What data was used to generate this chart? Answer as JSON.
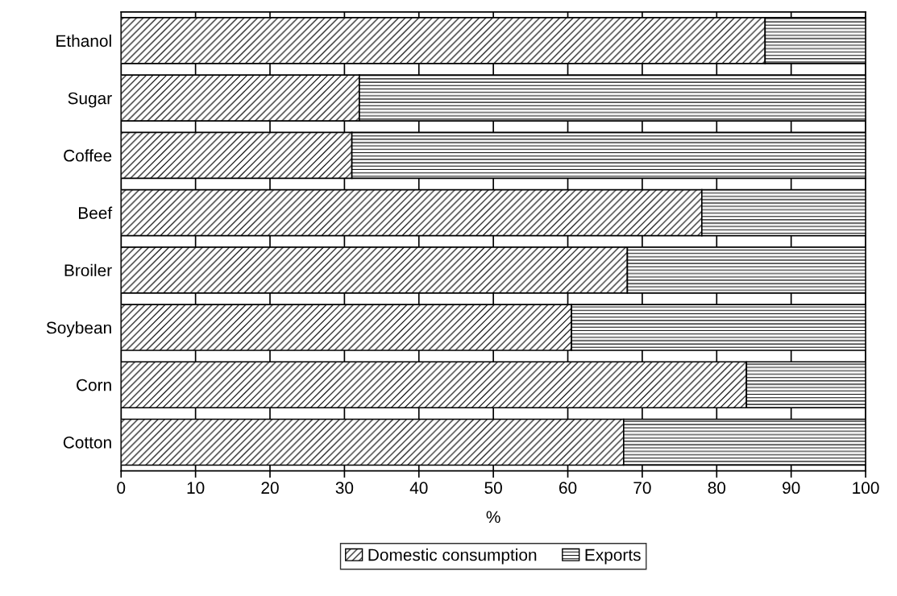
{
  "chart_data": {
    "type": "bar",
    "orientation": "horizontal",
    "stacked": true,
    "xlabel": "%",
    "categories": [
      "Ethanol",
      "Sugar",
      "Coffee",
      "Beef",
      "Broiler",
      "Soybean",
      "Corn",
      "Cotton"
    ],
    "series": [
      {
        "name": "Domestic consumption",
        "color": "#000000",
        "values": [
          86.5,
          32,
          31,
          78,
          68,
          60.5,
          84,
          67.5
        ]
      },
      {
        "name": "Exports",
        "color": "#000000",
        "values": [
          13.5,
          68,
          69,
          22,
          32,
          39.5,
          16,
          32.5
        ]
      }
    ],
    "xlim": [
      0,
      100
    ],
    "xticks": [
      0,
      10,
      20,
      30,
      40,
      50,
      60,
      70,
      80,
      90,
      100
    ],
    "grid": "x",
    "legend": "bottom"
  }
}
